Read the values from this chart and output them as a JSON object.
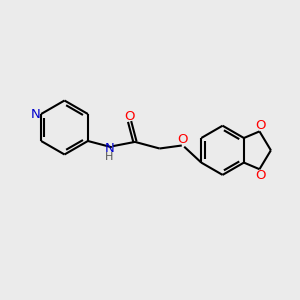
{
  "background_color": "#ebebeb",
  "bond_color": "#000000",
  "nitrogen_color": "#0000cc",
  "oxygen_color": "#ff0000",
  "lw": 1.5,
  "figsize": [
    3.0,
    3.0
  ],
  "dpi": 100,
  "xlim": [
    0,
    10
  ],
  "ylim": [
    0,
    10
  ]
}
